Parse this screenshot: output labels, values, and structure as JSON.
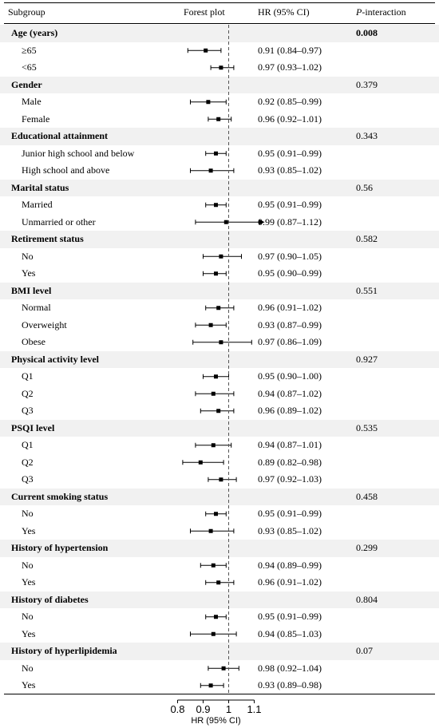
{
  "header": {
    "subgroup": "Subgroup",
    "forest_plot": "Forest plot",
    "hr_ci": "HR (95% CI)",
    "p_interaction_italic": "P",
    "p_interaction_rest": "-interaction"
  },
  "chart_data": {
    "type": "forest",
    "xlabel": "HR (95% CI)",
    "xticks": [
      0.8,
      0.9,
      1,
      1.1
    ],
    "xtick_labels": [
      "0.8",
      "0.9",
      "1",
      "1.1"
    ],
    "xlim": [
      0.8,
      1.1
    ],
    "reference_line": 1,
    "rows": [
      {
        "kind": "group",
        "label": "Age (years)",
        "p": "0.008",
        "p_bold": true
      },
      {
        "kind": "sub",
        "label": "≥65",
        "hr": 0.91,
        "lo": 0.84,
        "hi": 0.97,
        "text": "0.91 (0.84–0.97)"
      },
      {
        "kind": "sub",
        "label": "<65",
        "hr": 0.97,
        "lo": 0.93,
        "hi": 1.02,
        "text": "0.97 (0.93–1.02)"
      },
      {
        "kind": "group",
        "label": "Gender",
        "p": "0.379"
      },
      {
        "kind": "sub",
        "label": "Male",
        "hr": 0.92,
        "lo": 0.85,
        "hi": 0.99,
        "text": "0.92 (0.85–0.99)"
      },
      {
        "kind": "sub",
        "label": "Female",
        "hr": 0.96,
        "lo": 0.92,
        "hi": 1.01,
        "text": "0.96 (0.92–1.01)"
      },
      {
        "kind": "group",
        "label": "Educational attainment",
        "p": "0.343"
      },
      {
        "kind": "sub",
        "label": "Junior high school and below",
        "hr": 0.95,
        "lo": 0.91,
        "hi": 0.99,
        "text": "0.95 (0.91–0.99)"
      },
      {
        "kind": "sub",
        "label": "High school and above",
        "hr": 0.93,
        "lo": 0.85,
        "hi": 1.02,
        "text": "0.93 (0.85–1.02)"
      },
      {
        "kind": "group",
        "label": "Marital status",
        "p": "0.56"
      },
      {
        "kind": "sub",
        "label": "Married",
        "hr": 0.95,
        "lo": 0.91,
        "hi": 0.99,
        "text": "0.95 (0.91–0.99)"
      },
      {
        "kind": "sub",
        "label": "Unmarried or other",
        "hr": 0.99,
        "lo": 0.87,
        "hi": 1.12,
        "text": "0.99 (0.87–1.12)",
        "arrow": true
      },
      {
        "kind": "group",
        "label": "Retirement status",
        "p": "0.582"
      },
      {
        "kind": "sub",
        "label": "No",
        "hr": 0.97,
        "lo": 0.9,
        "hi": 1.05,
        "text": "0.97 (0.90–1.05)"
      },
      {
        "kind": "sub",
        "label": "Yes",
        "hr": 0.95,
        "lo": 0.9,
        "hi": 0.99,
        "text": "0.95 (0.90–0.99)"
      },
      {
        "kind": "group",
        "label": "BMI level",
        "p": "0.551"
      },
      {
        "kind": "sub",
        "label": "Normal",
        "hr": 0.96,
        "lo": 0.91,
        "hi": 1.02,
        "text": "0.96 (0.91–1.02)"
      },
      {
        "kind": "sub",
        "label": "Overweight",
        "hr": 0.93,
        "lo": 0.87,
        "hi": 0.99,
        "text": "0.93 (0.87–0.99)"
      },
      {
        "kind": "sub",
        "label": "Obese",
        "hr": 0.97,
        "lo": 0.86,
        "hi": 1.09,
        "text": "0.97 (0.86–1.09)"
      },
      {
        "kind": "group",
        "label": "Physical activity level",
        "p": "0.927"
      },
      {
        "kind": "sub",
        "label": "Q1",
        "hr": 0.95,
        "lo": 0.9,
        "hi": 1.0,
        "text": "0.95 (0.90–1.00)"
      },
      {
        "kind": "sub",
        "label": "Q2",
        "hr": 0.94,
        "lo": 0.87,
        "hi": 1.02,
        "text": "0.94 (0.87–1.02)"
      },
      {
        "kind": "sub",
        "label": "Q3",
        "hr": 0.96,
        "lo": 0.89,
        "hi": 1.02,
        "text": "0.96 (0.89–1.02)"
      },
      {
        "kind": "group",
        "label": "PSQI level",
        "p": "0.535"
      },
      {
        "kind": "sub",
        "label": "Q1",
        "hr": 0.94,
        "lo": 0.87,
        "hi": 1.01,
        "text": "0.94 (0.87–1.01)"
      },
      {
        "kind": "sub",
        "label": "Q2",
        "hr": 0.89,
        "lo": 0.82,
        "hi": 0.98,
        "text": "0.89 (0.82–0.98)"
      },
      {
        "kind": "sub",
        "label": "Q3",
        "hr": 0.97,
        "lo": 0.92,
        "hi": 1.03,
        "text": "0.97 (0.92–1.03)"
      },
      {
        "kind": "group",
        "label": "Current smoking status",
        "p": "0.458"
      },
      {
        "kind": "sub",
        "label": "No",
        "hr": 0.95,
        "lo": 0.91,
        "hi": 0.99,
        "text": "0.95 (0.91–0.99)"
      },
      {
        "kind": "sub",
        "label": "Yes",
        "hr": 0.93,
        "lo": 0.85,
        "hi": 1.02,
        "text": "0.93 (0.85–1.02)"
      },
      {
        "kind": "group",
        "label": "History of hypertension",
        "p": "0.299"
      },
      {
        "kind": "sub",
        "label": "No",
        "hr": 0.94,
        "lo": 0.89,
        "hi": 0.99,
        "text": "0.94 (0.89–0.99)"
      },
      {
        "kind": "sub",
        "label": "Yes",
        "hr": 0.96,
        "lo": 0.91,
        "hi": 1.02,
        "text": "0.96 (0.91–1.02)"
      },
      {
        "kind": "group",
        "label": "History of diabetes",
        "p": "0.804"
      },
      {
        "kind": "sub",
        "label": "No",
        "hr": 0.95,
        "lo": 0.91,
        "hi": 0.99,
        "text": "0.95 (0.91–0.99)"
      },
      {
        "kind": "sub",
        "label": "Yes",
        "hr": 0.94,
        "lo": 0.85,
        "hi": 1.03,
        "text": "0.94 (0.85–1.03)"
      },
      {
        "kind": "group",
        "label": "History of hyperlipidemia",
        "p": "0.07"
      },
      {
        "kind": "sub",
        "label": "No",
        "hr": 0.98,
        "lo": 0.92,
        "hi": 1.04,
        "text": "0.98 (0.92–1.04)"
      },
      {
        "kind": "sub",
        "label": "Yes",
        "hr": 0.93,
        "lo": 0.89,
        "hi": 0.98,
        "text": "0.93 (0.89–0.98)"
      }
    ]
  }
}
